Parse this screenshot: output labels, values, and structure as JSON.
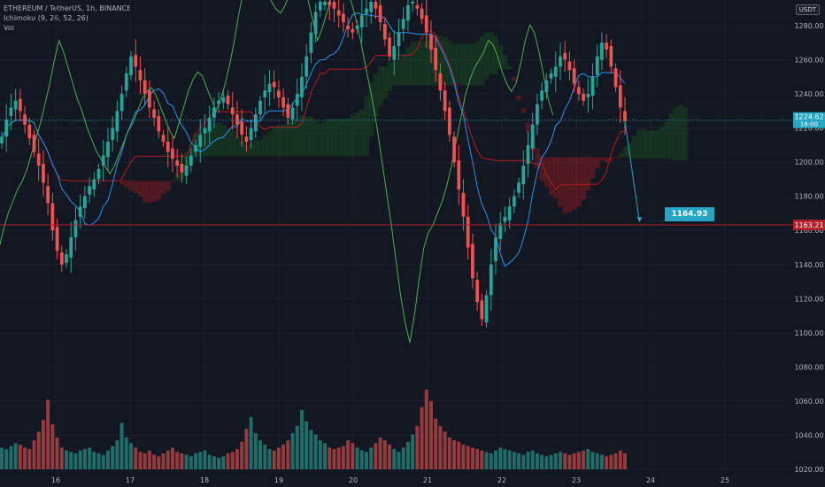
{
  "legend": {
    "symbol": "ETHEREUM / TetherUS, 1h, BINANCE",
    "ichimoku": "Ichimoku (9, 26, 52, 26)",
    "vol": "Vol"
  },
  "currency_badge": "USDT",
  "colors": {
    "background": "#131722",
    "up": "#26a69a",
    "down": "#ef5350",
    "grid": "#1e2230",
    "axis_text": "#b2b5be",
    "tenkan": "#2196f3",
    "kijun": "#b71c1c",
    "chikou": "#4caf50",
    "cloud_bull": "#1b5e20",
    "cloud_bear": "#b71c1c",
    "current_price": "#26a6c4",
    "support_line": "#b2222b"
  },
  "chart_data": {
    "type": "candlestick",
    "y_axis": {
      "min": 1020,
      "max": 1294,
      "ticks": [
        1020,
        1040,
        1060,
        1080,
        1100,
        1120,
        1140,
        1160,
        1180,
        1200,
        1220,
        1240,
        1260,
        1280
      ]
    },
    "x_axis": {
      "ticks": [
        {
          "label": "16",
          "day": 16
        },
        {
          "label": "17",
          "day": 17
        },
        {
          "label": "18",
          "day": 18
        },
        {
          "label": "19",
          "day": 19
        },
        {
          "label": "20",
          "day": 20
        },
        {
          "label": "21",
          "day": 21
        },
        {
          "label": "22",
          "day": 22
        },
        {
          "label": "23",
          "day": 23
        },
        {
          "label": "24",
          "day": 24
        },
        {
          "label": "25",
          "day": 25
        }
      ]
    },
    "close_series_approx": [
      1215,
      1225,
      1232,
      1236,
      1230,
      1222,
      1214,
      1206,
      1198,
      1188,
      1176,
      1160,
      1148,
      1140,
      1146,
      1156,
      1166,
      1174,
      1180,
      1186,
      1190,
      1196,
      1204,
      1212,
      1220,
      1230,
      1240,
      1252,
      1262,
      1256,
      1248,
      1240,
      1232,
      1226,
      1218,
      1212,
      1206,
      1202,
      1198,
      1194,
      1198,
      1204,
      1210,
      1216,
      1220,
      1226,
      1232,
      1236,
      1238,
      1234,
      1228,
      1222,
      1216,
      1212,
      1220,
      1228,
      1236,
      1242,
      1246,
      1244,
      1238,
      1232,
      1226,
      1232,
      1240,
      1250,
      1262,
      1276,
      1288,
      1294,
      1294,
      1292,
      1290,
      1286,
      1282,
      1278,
      1276,
      1280,
      1286,
      1290,
      1294,
      1290,
      1282,
      1272,
      1262,
      1268,
      1276,
      1284,
      1292,
      1294,
      1290,
      1284,
      1276,
      1266,
      1254,
      1242,
      1230,
      1216,
      1200,
      1184,
      1168,
      1150,
      1132,
      1118,
      1108,
      1122,
      1140,
      1156,
      1164,
      1168,
      1174,
      1180,
      1188,
      1198,
      1210,
      1222,
      1234,
      1242,
      1248,
      1252,
      1256,
      1262,
      1260,
      1254,
      1246,
      1240,
      1236,
      1240,
      1250,
      1262,
      1270,
      1266,
      1256,
      1244,
      1232,
      1224
    ],
    "volume_series_approx": [
      30,
      28,
      32,
      36,
      34,
      30,
      28,
      40,
      52,
      68,
      96,
      62,
      44,
      30,
      26,
      24,
      22,
      26,
      28,
      30,
      24,
      22,
      20,
      26,
      32,
      40,
      64,
      44,
      36,
      30,
      24,
      22,
      26,
      20,
      18,
      22,
      26,
      30,
      24,
      22,
      20,
      18,
      22,
      24,
      26,
      20,
      18,
      16,
      18,
      22,
      24,
      28,
      38,
      56,
      72,
      50,
      40,
      34,
      28,
      26,
      30,
      34,
      40,
      50,
      60,
      82,
      66,
      54,
      48,
      40,
      36,
      30,
      28,
      30,
      32,
      40,
      36,
      30,
      26,
      24,
      30,
      36,
      44,
      40,
      34,
      28,
      24,
      30,
      38,
      48,
      60,
      86,
      110,
      94,
      70,
      60,
      52,
      44,
      40,
      38,
      34,
      32,
      30,
      28,
      26,
      24,
      22,
      26,
      30,
      28,
      26,
      24,
      22,
      20,
      24,
      26,
      22,
      20,
      18,
      20,
      22,
      24,
      22,
      20,
      22,
      24,
      26,
      28,
      24,
      22,
      20,
      18,
      20,
      22,
      26,
      22
    ],
    "tenkan_series_approx": "derived (9-period midpoint)",
    "current_price": {
      "value": 1224.62,
      "label": "1224.62",
      "sub_label": "16:00"
    },
    "support_line": {
      "value": 1163.21,
      "label": "1163.21"
    },
    "target": {
      "value": 1164.93,
      "label": "1164.93",
      "day": 23.85
    }
  }
}
